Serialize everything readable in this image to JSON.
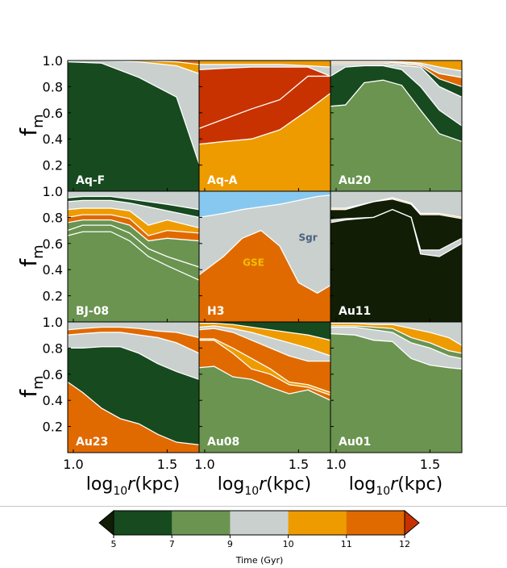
{
  "figure": {
    "ylabel_main": "f",
    "ylabel_sub": "m",
    "xlabel_main": "log",
    "xlabel_sub": "10",
    "xlabel_var": "r",
    "xlabel_unit": "(kpc)"
  },
  "axes": {
    "x_ticks": [
      "1.0",
      "1.5"
    ],
    "x_tick_values": [
      1.0,
      1.5
    ],
    "y_ticks": [
      "0.2",
      "0.4",
      "0.6",
      "0.8",
      "1.0"
    ],
    "y_tick_values": [
      0.2,
      0.4,
      0.6,
      0.8,
      1.0
    ],
    "xlim": [
      0.97,
      1.67
    ],
    "ylim": [
      0.0,
      1.0
    ]
  },
  "colorbar": {
    "label": "Time (Gyr)",
    "tick_labels": [
      "5",
      "7",
      "9",
      "10",
      "11",
      "12"
    ],
    "colors": [
      "#174a1f",
      "#6a9450",
      "#c9d0ce",
      "#ee9b00",
      "#e06a00"
    ],
    "under_color": "#111d05",
    "over_color": "#c83200"
  },
  "chart_data": [
    {
      "type": "area",
      "panel": "Aq-F",
      "x": [
        0.98,
        1.15,
        1.35,
        1.55,
        1.67
      ],
      "bands": [
        {
          "color": "#174a1f",
          "upper": [
            0.99,
            0.98,
            0.87,
            0.72,
            0.21
          ]
        },
        {
          "color": "#c9d0ce",
          "upper": [
            1.0,
            1.0,
            0.99,
            0.96,
            0.9
          ]
        },
        {
          "color": "#ee9b00",
          "upper": [
            1.0,
            1.0,
            1.0,
            0.99,
            0.97
          ]
        },
        {
          "color": "#e06a00",
          "upper": [
            1.0,
            1.0,
            1.0,
            1.0,
            1.0
          ]
        }
      ]
    },
    {
      "type": "area",
      "panel": "Aq-A",
      "x": [
        0.98,
        1.1,
        1.25,
        1.4,
        1.55,
        1.67
      ],
      "bands": [
        {
          "color": "#ee9b00",
          "upper": [
            0.36,
            0.38,
            0.4,
            0.47,
            0.62,
            0.75
          ]
        },
        {
          "color": "#c83200",
          "upper": [
            0.48,
            0.55,
            0.63,
            0.7,
            0.88,
            0.88
          ]
        },
        {
          "color": "#c83200",
          "upper": [
            0.93,
            0.94,
            0.95,
            0.95,
            0.95,
            0.88
          ]
        },
        {
          "color": "#c9d0ce",
          "upper": [
            0.97,
            0.97,
            0.97,
            0.97,
            0.96,
            0.95
          ]
        },
        {
          "color": "#ee9b00",
          "upper": [
            1.0,
            1.0,
            1.0,
            1.0,
            1.0,
            1.0
          ]
        }
      ]
    },
    {
      "type": "area",
      "panel": "Au20",
      "x": [
        0.98,
        1.05,
        1.15,
        1.25,
        1.35,
        1.45,
        1.55,
        1.67
      ],
      "bands": [
        {
          "color": "#6a9450",
          "upper": [
            0.65,
            0.66,
            0.83,
            0.85,
            0.81,
            0.62,
            0.44,
            0.38
          ]
        },
        {
          "color": "#174a1f",
          "upper": [
            0.88,
            0.95,
            0.96,
            0.96,
            0.93,
            0.8,
            0.62,
            0.5
          ]
        },
        {
          "color": "#c9d0ce",
          "upper": [
            0.97,
            0.97,
            0.97,
            0.97,
            0.96,
            0.95,
            0.8,
            0.72
          ]
        },
        {
          "color": "#174a1f",
          "upper": [
            0.98,
            0.98,
            0.98,
            0.98,
            0.97,
            0.96,
            0.86,
            0.8
          ]
        },
        {
          "color": "#e06a00",
          "upper": [
            0.99,
            0.99,
            0.99,
            0.99,
            0.98,
            0.97,
            0.9,
            0.87
          ]
        },
        {
          "color": "#c9d0ce",
          "upper": [
            0.995,
            0.995,
            0.995,
            0.995,
            0.99,
            0.98,
            0.95,
            0.92
          ]
        },
        {
          "color": "#ee9b00",
          "upper": [
            1.0,
            1.0,
            1.0,
            1.0,
            1.0,
            1.0,
            1.0,
            1.0
          ]
        }
      ]
    },
    {
      "type": "area",
      "panel": "BJ-08",
      "x": [
        0.98,
        1.05,
        1.2,
        1.3,
        1.4,
        1.5,
        1.67
      ],
      "bands": [
        {
          "color": "#6a9450",
          "upper": [
            0.66,
            0.69,
            0.69,
            0.62,
            0.5,
            0.43,
            0.32
          ]
        },
        {
          "color": "#6a9450",
          "upper": [
            0.7,
            0.74,
            0.74,
            0.68,
            0.56,
            0.5,
            0.42
          ]
        },
        {
          "color": "#6a9450",
          "upper": [
            0.76,
            0.78,
            0.78,
            0.74,
            0.62,
            0.64,
            0.62
          ]
        },
        {
          "color": "#e06a00",
          "upper": [
            0.8,
            0.82,
            0.82,
            0.79,
            0.66,
            0.7,
            0.68
          ]
        },
        {
          "color": "#ee9b00",
          "upper": [
            0.86,
            0.87,
            0.87,
            0.85,
            0.74,
            0.78,
            0.72
          ]
        },
        {
          "color": "#c9d0ce",
          "upper": [
            0.92,
            0.93,
            0.93,
            0.91,
            0.88,
            0.85,
            0.8
          ]
        },
        {
          "color": "#174a1f",
          "upper": [
            0.95,
            0.96,
            0.96,
            0.94,
            0.92,
            0.9,
            0.86
          ]
        },
        {
          "color": "#c9d0ce",
          "upper": [
            1.0,
            1.0,
            1.0,
            1.0,
            1.0,
            1.0,
            1.0
          ]
        }
      ]
    },
    {
      "type": "area",
      "panel": "H3",
      "x": [
        0.98,
        1.1,
        1.2,
        1.3,
        1.4,
        1.5,
        1.6,
        1.67
      ],
      "bands": [
        {
          "color": "#e06a00",
          "upper": [
            0.36,
            0.5,
            0.64,
            0.7,
            0.58,
            0.3,
            0.22,
            0.28
          ]
        },
        {
          "color": "#c9d0ce",
          "upper": [
            0.8,
            0.83,
            0.86,
            0.88,
            0.9,
            0.93,
            0.96,
            0.97
          ]
        },
        {
          "color": "#87c8f0",
          "upper": [
            1.0,
            1.0,
            1.0,
            1.0,
            1.0,
            1.0,
            1.0,
            1.0
          ]
        }
      ],
      "labels": [
        {
          "text": "GSE",
          "x": 1.26,
          "y": 0.43,
          "color": "#f0c000"
        },
        {
          "text": "Sgr",
          "x": 1.55,
          "y": 0.62,
          "color": "#4a6080"
        }
      ]
    },
    {
      "type": "area",
      "panel": "Au11",
      "x": [
        0.98,
        1.05,
        1.2,
        1.3,
        1.4,
        1.45,
        1.55,
        1.67
      ],
      "bands": [
        {
          "color": "#111d05",
          "upper": [
            0.76,
            0.78,
            0.8,
            0.86,
            0.8,
            0.52,
            0.5,
            0.6
          ]
        },
        {
          "color": "#c9d0ce",
          "upper": [
            0.78,
            0.79,
            0.8,
            0.86,
            0.8,
            0.55,
            0.55,
            0.64
          ]
        },
        {
          "color": "#111d05",
          "upper": [
            0.86,
            0.86,
            0.92,
            0.94,
            0.9,
            0.82,
            0.82,
            0.79
          ]
        },
        {
          "color": "#ee9b00",
          "upper": [
            0.87,
            0.87,
            0.92,
            0.95,
            0.91,
            0.83,
            0.83,
            0.8
          ]
        },
        {
          "color": "#c9d0ce",
          "upper": [
            1.0,
            1.0,
            1.0,
            1.0,
            1.0,
            1.0,
            1.0,
            1.0
          ]
        }
      ]
    },
    {
      "type": "area",
      "panel": "Au23",
      "x": [
        0.98,
        1.05,
        1.15,
        1.25,
        1.35,
        1.45,
        1.55,
        1.67
      ],
      "bands": [
        {
          "color": "#e06a00",
          "upper": [
            0.54,
            0.46,
            0.34,
            0.26,
            0.22,
            0.14,
            0.08,
            0.06
          ]
        },
        {
          "color": "#174a1f",
          "upper": [
            0.8,
            0.8,
            0.81,
            0.81,
            0.76,
            0.68,
            0.62,
            0.56
          ]
        },
        {
          "color": "#c9d0ce",
          "upper": [
            0.9,
            0.91,
            0.92,
            0.92,
            0.9,
            0.88,
            0.84,
            0.76
          ]
        },
        {
          "color": "#e06a00",
          "upper": [
            0.94,
            0.95,
            0.96,
            0.96,
            0.95,
            0.93,
            0.92,
            0.88
          ]
        },
        {
          "color": "#c9d0ce",
          "upper": [
            1.0,
            1.0,
            1.0,
            1.0,
            1.0,
            1.0,
            1.0,
            1.0
          ]
        }
      ]
    },
    {
      "type": "area",
      "panel": "Au08",
      "x": [
        0.98,
        1.05,
        1.15,
        1.25,
        1.35,
        1.45,
        1.55,
        1.67
      ],
      "bands": [
        {
          "color": "#6a9450",
          "upper": [
            0.65,
            0.66,
            0.58,
            0.56,
            0.5,
            0.45,
            0.48,
            0.4
          ]
        },
        {
          "color": "#e06a00",
          "upper": [
            0.86,
            0.86,
            0.76,
            0.64,
            0.6,
            0.52,
            0.5,
            0.44
          ]
        },
        {
          "color": "#ee9b00",
          "upper": [
            0.87,
            0.87,
            0.8,
            0.72,
            0.64,
            0.54,
            0.52,
            0.46
          ]
        },
        {
          "color": "#e06a00",
          "upper": [
            0.94,
            0.95,
            0.92,
            0.86,
            0.8,
            0.74,
            0.7,
            0.7
          ]
        },
        {
          "color": "#c9d0ce",
          "upper": [
            0.96,
            0.97,
            0.95,
            0.92,
            0.88,
            0.84,
            0.8,
            0.74
          ]
        },
        {
          "color": "#ee9b00",
          "upper": [
            0.99,
            0.99,
            0.98,
            0.96,
            0.94,
            0.92,
            0.9,
            0.86
          ]
        },
        {
          "color": "#174a1f",
          "upper": [
            1.0,
            1.0,
            1.0,
            1.0,
            1.0,
            1.0,
            1.0,
            1.0
          ]
        }
      ]
    },
    {
      "type": "area",
      "panel": "Au01",
      "x": [
        0.98,
        1.1,
        1.2,
        1.3,
        1.4,
        1.5,
        1.6,
        1.67
      ],
      "bands": [
        {
          "color": "#6a9450",
          "upper": [
            0.91,
            0.9,
            0.86,
            0.85,
            0.72,
            0.67,
            0.65,
            0.64
          ]
        },
        {
          "color": "#c9d0ce",
          "upper": [
            0.96,
            0.96,
            0.94,
            0.92,
            0.84,
            0.8,
            0.74,
            0.72
          ]
        },
        {
          "color": "#6a9450",
          "upper": [
            0.97,
            0.97,
            0.96,
            0.95,
            0.88,
            0.84,
            0.78,
            0.76
          ]
        },
        {
          "color": "#ee9b00",
          "upper": [
            0.99,
            0.99,
            0.98,
            0.98,
            0.95,
            0.92,
            0.88,
            0.82
          ]
        },
        {
          "color": "#c9d0ce",
          "upper": [
            1.0,
            1.0,
            1.0,
            1.0,
            1.0,
            1.0,
            1.0,
            1.0
          ]
        }
      ]
    }
  ]
}
